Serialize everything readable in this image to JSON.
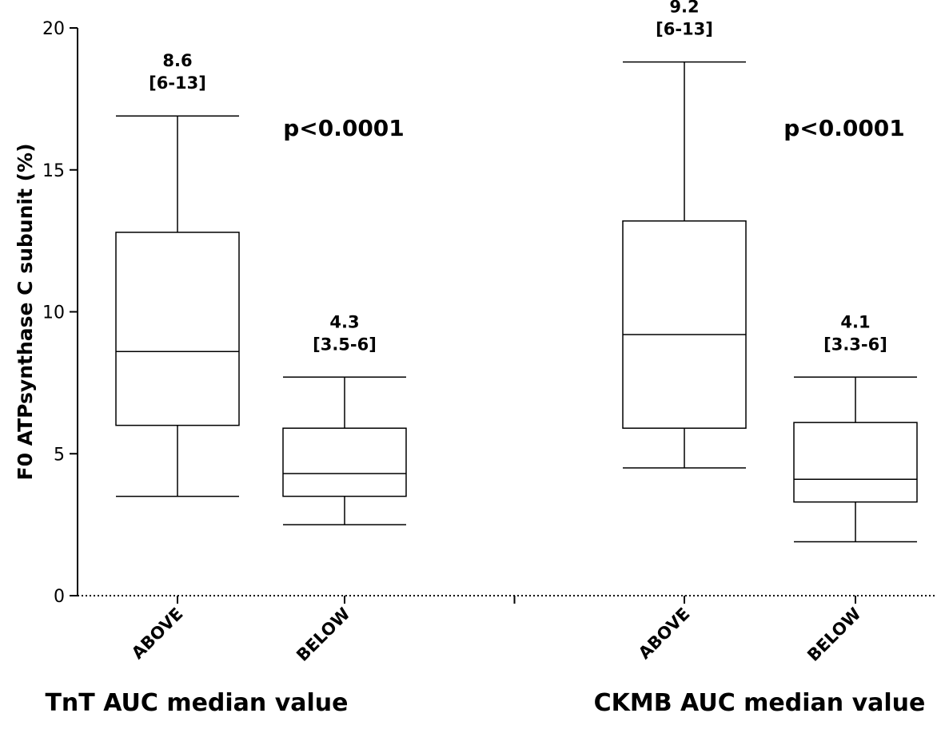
{
  "chart_data": {
    "type": "box",
    "ylabel": "F0 ATPsynthase C subunit (%)",
    "ylim": [
      0,
      20
    ],
    "yticks": [
      0,
      5,
      10,
      15,
      20
    ],
    "groups": [
      {
        "label": "TnT AUC median value",
        "p_value": "p<0.0001",
        "boxes": [
          {
            "category": "ABOVE",
            "min": 3.5,
            "q1": 6.0,
            "median": 8.6,
            "q3": 12.8,
            "max": 16.9,
            "median_label": "8.6",
            "iqr_label": "[6-13]"
          },
          {
            "category": "BELOW",
            "min": 2.5,
            "q1": 3.5,
            "median": 4.3,
            "q3": 5.9,
            "max": 7.7,
            "median_label": "4.3",
            "iqr_label": "[3.5-6]"
          }
        ]
      },
      {
        "label": "CKMB AUC median value",
        "p_value": "p<0.0001",
        "boxes": [
          {
            "category": "ABOVE",
            "min": 4.5,
            "q1": 5.9,
            "median": 9.2,
            "q3": 13.2,
            "max": 18.8,
            "median_label": "9.2",
            "iqr_label": "[6-13]"
          },
          {
            "category": "BELOW",
            "min": 1.9,
            "q1": 3.3,
            "median": 4.1,
            "q3": 6.1,
            "max": 7.7,
            "median_label": "4.1",
            "iqr_label": "[3.3-6]"
          }
        ]
      }
    ],
    "grid": false,
    "legend": "none"
  }
}
